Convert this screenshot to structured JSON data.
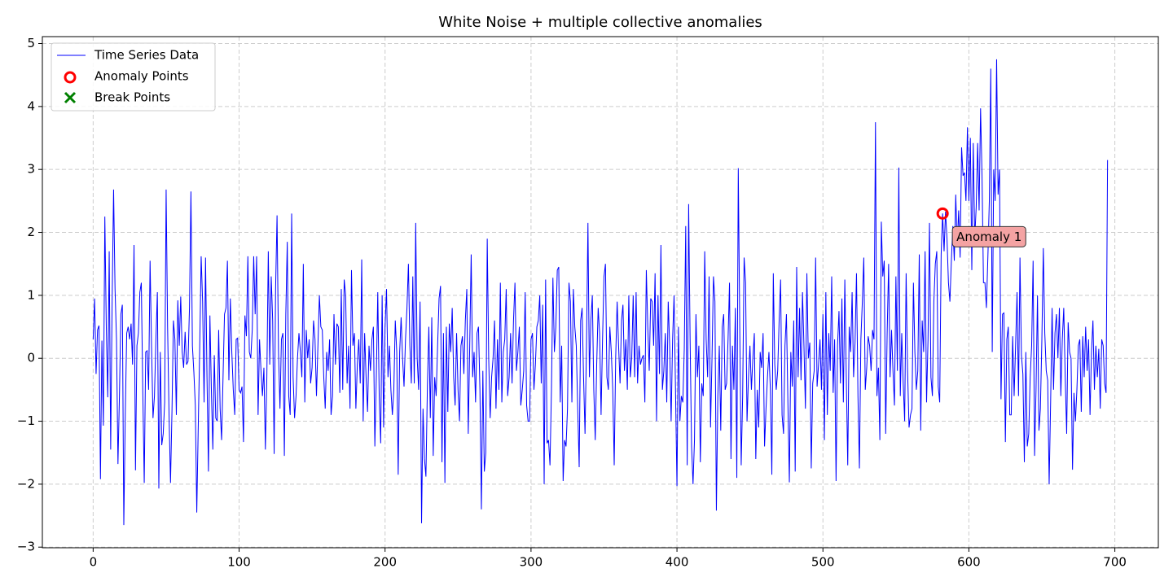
{
  "chart_data": {
    "type": "line",
    "title": "White Noise + multiple collective anomalies",
    "xlim": [
      -34.8,
      729.8
    ],
    "xticks": [
      0,
      100,
      200,
      300,
      400,
      500,
      600,
      700
    ],
    "ylim": [
      -3.01,
      5.11
    ],
    "yticks": [
      {
        "value": -3,
        "label": "−3"
      },
      {
        "value": -2,
        "label": "−2"
      },
      {
        "value": -1,
        "label": "−1"
      },
      0,
      1,
      2,
      3,
      4,
      5
    ],
    "grid": true,
    "legend": "upper left",
    "series": [
      {
        "name": "Time Series Data",
        "color": "#0000ff",
        "values": [
          0.3,
          0.95,
          -0.25,
          0.45,
          0.52,
          -1.92,
          0.28,
          -1.07,
          2.25,
          0.5,
          -0.62,
          1.7,
          -1.45,
          0.9,
          2.68,
          1.1,
          0.3,
          -1.68,
          -0.6,
          0.7,
          0.85,
          -2.65,
          -0.9,
          0.4,
          0.5,
          0.3,
          0.55,
          -0.1,
          1.8,
          -1.78,
          0.2,
          0.4,
          1.05,
          1.2,
          -0.5,
          -1.98,
          0.1,
          0.12,
          -0.5,
          1.55,
          0.2,
          -0.95,
          -0.6,
          0.3,
          1.05,
          -2.07,
          0.1,
          -1.38,
          -1.2,
          -0.7,
          2.68,
          0.5,
          -0.9,
          -1.98,
          -0.85,
          0.6,
          0.3,
          -0.9,
          0.92,
          0.2,
          0.98,
          0.1,
          -0.15,
          0.42,
          -0.1,
          -0.05,
          0.8,
          2.65,
          0.2,
          -0.22,
          -0.75,
          -2.45,
          -1.1,
          0.15,
          1.62,
          0.9,
          -0.7,
          1.6,
          -0.3,
          -1.8,
          0.68,
          -0.5,
          -1.45,
          0.05,
          -0.95,
          -1.0,
          0.45,
          -0.8,
          -1.3,
          -0.3,
          0.7,
          0.8,
          1.55,
          -0.35,
          0.95,
          0.1,
          -0.5,
          -0.9,
          0.3,
          0.32,
          -0.5,
          -0.55,
          -0.45,
          -1.33,
          0.68,
          0.35,
          1.62,
          0.1,
          0.0,
          0.45,
          1.62,
          0.7,
          1.62,
          -0.9,
          0.3,
          -0.2,
          -0.6,
          -0.15,
          -1.45,
          -0.3,
          1.7,
          -0.1,
          1.3,
          0.6,
          -1.52,
          1.1,
          2.27,
          0.1,
          -0.8,
          0.3,
          0.4,
          -1.55,
          0.7,
          1.85,
          -0.6,
          -0.9,
          2.3,
          -0.3,
          -0.95,
          -0.6,
          0.0,
          0.4,
          0.1,
          -0.3,
          1.5,
          -0.7,
          0.45,
          0.0,
          0.3,
          -0.4,
          -0.15,
          0.6,
          0.3,
          -0.6,
          0.2,
          1.0,
          0.5,
          0.45,
          -0.3,
          -0.8,
          0.1,
          -0.2,
          0.3,
          -0.9,
          -0.6,
          0.7,
          -0.1,
          0.55,
          0.5,
          -0.55,
          1.1,
          -0.5,
          1.25,
          1.0,
          -0.4,
          0.2,
          -0.8,
          1.4,
          0.2,
          0.4,
          -0.8,
          -0.1,
          0.3,
          -0.4,
          1.57,
          -1.0,
          0.4,
          -0.3,
          -0.85,
          0.2,
          -0.2,
          0.3,
          0.5,
          -1.4,
          -0.3,
          1.05,
          -0.6,
          -1.35,
          1.0,
          -1.1,
          0.5,
          1.1,
          -0.3,
          0.2,
          -0.5,
          -0.9,
          -0.5,
          0.6,
          0.1,
          -1.85,
          0.1,
          0.65,
          0.0,
          -0.45,
          0.3,
          0.8,
          1.5,
          0.2,
          -0.4,
          1.3,
          -0.4,
          2.15,
          0.0,
          -0.5,
          0.9,
          -2.62,
          -0.8,
          -1.6,
          -1.88,
          -0.45,
          0.5,
          -0.95,
          0.65,
          -1.55,
          -0.3,
          -0.6,
          0.2,
          0.95,
          1.15,
          -1.65,
          0.4,
          -1.98,
          0.5,
          -0.85,
          0.55,
          0.1,
          0.8,
          -0.3,
          -0.75,
          0.4,
          -0.5,
          -1.0,
          0.2,
          0.35,
          -0.25,
          0.6,
          1.1,
          -1.2,
          0.2,
          1.65,
          -0.3,
          0.1,
          -0.7,
          0.4,
          0.5,
          -0.5,
          -2.4,
          -0.2,
          -1.8,
          -1.5,
          1.9,
          0.0,
          -0.95,
          -0.3,
          0.0,
          0.6,
          -0.8,
          0.3,
          -0.5,
          1.2,
          -0.7,
          0.1,
          0.3,
          1.1,
          -0.6,
          -0.3,
          0.4,
          -0.4,
          0.6,
          1.2,
          -0.2,
          0.1,
          0.5,
          -0.75,
          -0.5,
          -0.2,
          1.05,
          -0.75,
          -1.0,
          -1.0,
          0.3,
          0.4,
          -0.5,
          -0.1,
          0.5,
          0.6,
          1.0,
          -0.4,
          0.85,
          -2.0,
          1.25,
          -1.35,
          -1.3,
          -1.7,
          -0.5,
          1.28,
          0.1,
          0.5,
          1.4,
          1.45,
          -0.7,
          0.2,
          -1.95,
          -1.3,
          -1.4,
          -0.8,
          1.2,
          0.9,
          -0.7,
          1.1,
          0.5,
          0.2,
          -0.8,
          -1.73,
          0.6,
          0.8,
          -0.3,
          -1.2,
          0.2,
          2.15,
          -0.3,
          0.6,
          1.0,
          -0.5,
          -1.3,
          -0.1,
          0.8,
          0.4,
          -0.9,
          0.3,
          1.3,
          1.5,
          -0.3,
          -0.5,
          0.5,
          0.1,
          -0.5,
          -1.7,
          0.0,
          0.9,
          0.2,
          -0.4,
          0.6,
          0.85,
          -0.2,
          0.3,
          -0.5,
          1.0,
          -0.3,
          0.0,
          1.0,
          -0.3,
          1.05,
          -0.4,
          0.2,
          -0.1,
          0.0,
          0.05,
          -0.7,
          1.4,
          0.5,
          -0.2,
          0.95,
          0.9,
          0.2,
          1.35,
          -1.0,
          1.0,
          -0.25,
          1.8,
          -0.5,
          -0.2,
          0.4,
          -0.7,
          0.9,
          0.2,
          -1.0,
          0.3,
          1.0,
          -0.5,
          -2.03,
          0.5,
          -1.0,
          -0.6,
          -0.7,
          0.15,
          2.1,
          -1.7,
          2.45,
          0.3,
          -1.4,
          -2.0,
          -1.3,
          0.7,
          -0.3,
          0.2,
          -1.65,
          -0.4,
          -0.6,
          1.7,
          0.3,
          -0.3,
          1.3,
          -1.1,
          0.0,
          1.3,
          0.9,
          -2.42,
          -0.6,
          0.2,
          -1.15,
          0.5,
          0.7,
          -0.5,
          -0.4,
          0.3,
          1.2,
          -1.6,
          0.2,
          -0.5,
          0.8,
          -1.9,
          3.02,
          0.5,
          -1.7,
          -0.6,
          1.6,
          1.2,
          -1.0,
          -0.3,
          0.2,
          -0.5,
          0.0,
          0.4,
          -1.6,
          -0.5,
          -1.1,
          0.1,
          -0.15,
          0.4,
          -1.4,
          -0.8,
          -0.3,
          0.1,
          -0.5,
          -1.85,
          1.35,
          -0.1,
          -0.5,
          -0.2,
          0.6,
          1.25,
          -0.9,
          -1.2,
          0.2,
          0.7,
          -0.7,
          -1.97,
          0.1,
          -0.45,
          0.6,
          -1.8,
          1.45,
          -0.3,
          0.8,
          -0.35,
          1.05,
          0.2,
          -0.8,
          1.35,
          0.0,
          0.25,
          -1.75,
          -0.4,
          -0.2,
          1.6,
          -0.45,
          -0.1,
          0.3,
          -0.5,
          0.7,
          -1.3,
          1.05,
          -0.9,
          0.4,
          -0.2,
          1.3,
          -0.55,
          0.3,
          -1.95,
          0.2,
          0.75,
          -0.4,
          0.95,
          -0.7,
          1.25,
          -0.3,
          -1.7,
          0.5,
          0.1,
          1.05,
          -0.3,
          0.25,
          1.35,
          -0.6,
          -1.75,
          0.3,
          0.9,
          1.6,
          -0.5,
          -0.15,
          0.35,
          0.2,
          -0.2,
          0.45,
          0.3,
          3.75,
          -0.6,
          -0.15,
          -1.3,
          2.17,
          1.3,
          1.55,
          -1.2,
          0.4,
          1.5,
          -0.3,
          0.45,
          -0.2,
          -0.75,
          1.3,
          -0.2,
          3.03,
          -0.6,
          0.4,
          -0.4,
          -1.0,
          1.35,
          -0.2,
          -1.1,
          -0.9,
          -0.8,
          1.2,
          0.1,
          -0.5,
          -0.2,
          1.65,
          -1.15,
          0.6,
          0.1,
          1.7,
          -0.7,
          0.3,
          2.15,
          -0.3,
          -0.6,
          0.9,
          1.5,
          1.7,
          -0.45,
          -0.7,
          1.65,
          2.3,
          1.7,
          2.33,
          1.9,
          1.2,
          0.9,
          1.55,
          2.1,
          1.55,
          2.6,
          1.8,
          2.35,
          1.6,
          3.35,
          2.9,
          2.95,
          2.5,
          3.67,
          2.5,
          3.5,
          1.4,
          3.42,
          1.9,
          2.4,
          3.42,
          2.35,
          3.97,
          2.9,
          1.2,
          1.2,
          0.8,
          1.6,
          2.5,
          4.6,
          0.1,
          3.0,
          2.5,
          4.75,
          2.6,
          3.0,
          -0.65,
          0.7,
          0.72,
          -1.33,
          0.3,
          0.5,
          -0.9,
          -0.9,
          0.35,
          -0.6,
          0.2,
          1.05,
          -0.6,
          1.6,
          0.05,
          -0.25,
          -1.65,
          0.1,
          -1.4,
          -1.2,
          -0.3,
          0.2,
          1.55,
          -1.55,
          -0.5,
          1.0,
          -1.15,
          -0.8,
          0.3,
          1.75,
          0.4,
          -0.2,
          -0.35,
          -2.0,
          -0.7,
          0.8,
          -0.5,
          0.4,
          0.7,
          0.0,
          0.8,
          -0.6,
          0.3,
          0.8,
          -0.3,
          -1.2,
          0.57,
          0.1,
          0.0,
          -1.77,
          -0.55,
          -1.0,
          -0.5,
          0.2,
          0.3,
          -0.85,
          0.35,
          -0.3,
          0.5,
          -0.2,
          0.3,
          -0.9,
          0.1,
          0.6,
          -0.5,
          0.2,
          -0.3,
          0.15,
          -0.8,
          0.3,
          0.2,
          -0.4,
          -0.55,
          3.15
        ]
      },
      {
        "name": "Anomaly Points",
        "color": "#ff0000",
        "x": [
          582
        ],
        "values": [
          2.3
        ]
      },
      {
        "name": "Break Points",
        "color": "#008000",
        "x": [],
        "values": []
      }
    ],
    "annotations": [
      {
        "text": "Anomaly 1"
      }
    ]
  }
}
